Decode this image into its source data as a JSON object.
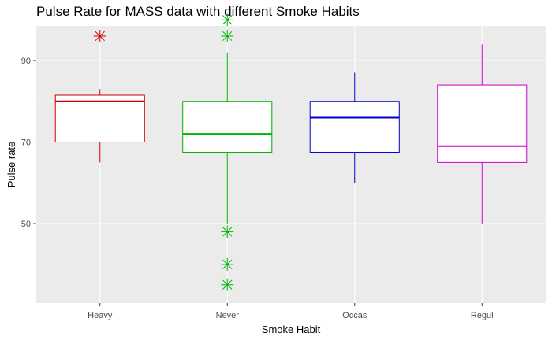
{
  "chart_data": {
    "type": "box",
    "title": "Pulse Rate for MASS data with different Smoke Habits",
    "xlabel": "Smoke Habit",
    "ylabel": "Pulse rate",
    "ylim": [
      30.5,
      98.5
    ],
    "yticks": [
      50,
      70,
      90
    ],
    "grid": true,
    "categories": [
      "Heavy",
      "Never",
      "Occas",
      "Regul"
    ],
    "colors": [
      "#cc0000",
      "#00b300",
      "#0000cc",
      "#cc00cc"
    ],
    "boxes": [
      {
        "category": "Heavy",
        "min": 65,
        "q1": 70,
        "median": 80,
        "q3": 81.5,
        "max": 83,
        "outliers": [
          96
        ]
      },
      {
        "category": "Never",
        "min": 50,
        "q1": 67.5,
        "median": 72,
        "q3": 80,
        "max": 92,
        "outliers": [
          100,
          96,
          48,
          40,
          35
        ]
      },
      {
        "category": "Occas",
        "min": 60,
        "q1": 67.5,
        "median": 76,
        "q3": 80,
        "max": 87,
        "outliers": []
      },
      {
        "category": "Regul",
        "min": 50,
        "q1": 65,
        "median": 69,
        "q3": 84,
        "max": 94,
        "outliers": []
      }
    ]
  }
}
